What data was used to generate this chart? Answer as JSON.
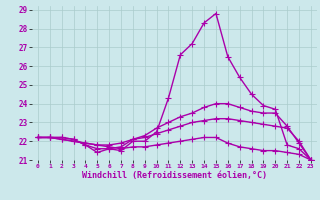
{
  "xlabel": "Windchill (Refroidissement éolien,°C)",
  "ylabel": "",
  "xlim": [
    -0.5,
    23.5
  ],
  "ylim": [
    21,
    29.2
  ],
  "yticks": [
    21,
    22,
    23,
    24,
    25,
    26,
    27,
    28,
    29
  ],
  "xticks": [
    0,
    1,
    2,
    3,
    4,
    5,
    6,
    7,
    8,
    9,
    10,
    11,
    12,
    13,
    14,
    15,
    16,
    17,
    18,
    19,
    20,
    21,
    22,
    23
  ],
  "background_color": "#cce8eb",
  "line_color": "#aa00aa",
  "grid_color": "#aacccc",
  "lines": [
    {
      "x": [
        0,
        1,
        2,
        3,
        4,
        5,
        6,
        7,
        8,
        9,
        10,
        11,
        12,
        13,
        14,
        15,
        16,
        17,
        18,
        19,
        20,
        21,
        22,
        23
      ],
      "y": [
        22.2,
        22.2,
        22.2,
        22.1,
        21.8,
        21.4,
        21.6,
        21.5,
        22.0,
        22.0,
        22.5,
        24.3,
        26.6,
        27.2,
        28.3,
        28.8,
        26.5,
        25.4,
        24.5,
        23.9,
        23.7,
        21.8,
        21.6,
        21.0
      ]
    },
    {
      "x": [
        0,
        1,
        2,
        3,
        4,
        5,
        6,
        7,
        8,
        9,
        10,
        11,
        12,
        13,
        14,
        15,
        16,
        17,
        18,
        19,
        20,
        21,
        22,
        23
      ],
      "y": [
        22.2,
        22.2,
        22.2,
        22.1,
        21.8,
        21.6,
        21.6,
        21.7,
        22.1,
        22.3,
        22.7,
        23.0,
        23.3,
        23.5,
        23.8,
        24.0,
        24.0,
        23.8,
        23.6,
        23.5,
        23.5,
        22.8,
        21.9,
        21.0
      ]
    },
    {
      "x": [
        0,
        1,
        2,
        3,
        4,
        5,
        6,
        7,
        8,
        9,
        10,
        11,
        12,
        13,
        14,
        15,
        16,
        17,
        18,
        19,
        20,
        21,
        22,
        23
      ],
      "y": [
        22.2,
        22.2,
        22.1,
        22.0,
        21.9,
        21.8,
        21.8,
        21.9,
        22.1,
        22.2,
        22.4,
        22.6,
        22.8,
        23.0,
        23.1,
        23.2,
        23.2,
        23.1,
        23.0,
        22.9,
        22.8,
        22.7,
        22.0,
        21.0
      ]
    },
    {
      "x": [
        0,
        1,
        2,
        3,
        4,
        5,
        6,
        7,
        8,
        9,
        10,
        11,
        12,
        13,
        14,
        15,
        16,
        17,
        18,
        19,
        20,
        21,
        22,
        23
      ],
      "y": [
        22.2,
        22.2,
        22.1,
        22.0,
        21.9,
        21.8,
        21.7,
        21.6,
        21.7,
        21.7,
        21.8,
        21.9,
        22.0,
        22.1,
        22.2,
        22.2,
        21.9,
        21.7,
        21.6,
        21.5,
        21.5,
        21.4,
        21.3,
        21.0
      ]
    }
  ],
  "marker": "+",
  "markersize": 4,
  "linewidth": 1.0
}
